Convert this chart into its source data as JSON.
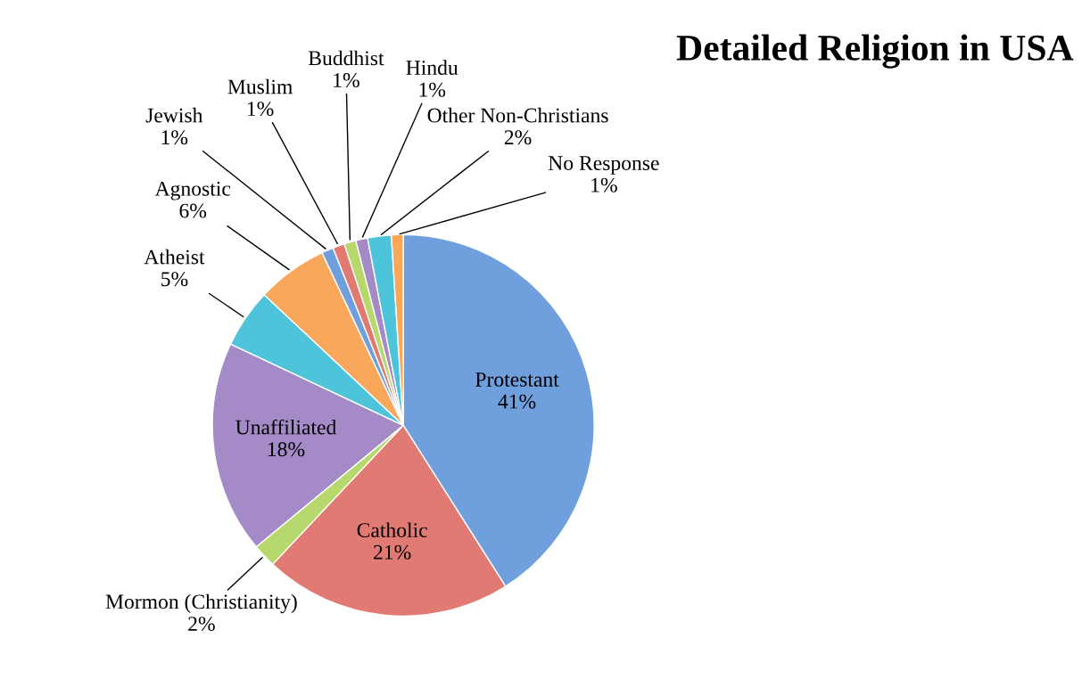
{
  "chart_data": {
    "type": "pie",
    "title": "Detailed Religion in USA",
    "categories": [
      "Protestant",
      "Catholic",
      "Mormon (Christianity)",
      "Unaffiliated",
      "Atheist",
      "Agnostic",
      "Jewish",
      "Muslim",
      "Buddhist",
      "Hindu",
      "Other Non-Christians",
      "No Response"
    ],
    "values": [
      41,
      21,
      2,
      18,
      5,
      6,
      1,
      1,
      1,
      1,
      2,
      1
    ],
    "colors": [
      "#6f9fdc",
      "#e27a74",
      "#b7d86c",
      "#a48ac6",
      "#4dc4da",
      "#f9a75a",
      "#6f9fdc",
      "#e27a74",
      "#b7d86c",
      "#a48ac6",
      "#4dc4da",
      "#f9a75a"
    ],
    "value_labels": [
      "41%",
      "21%",
      "2%",
      "18%",
      "5%",
      "6%",
      "1%",
      "1%",
      "1%",
      "1%",
      "2%",
      "1%"
    ],
    "legend": false
  }
}
